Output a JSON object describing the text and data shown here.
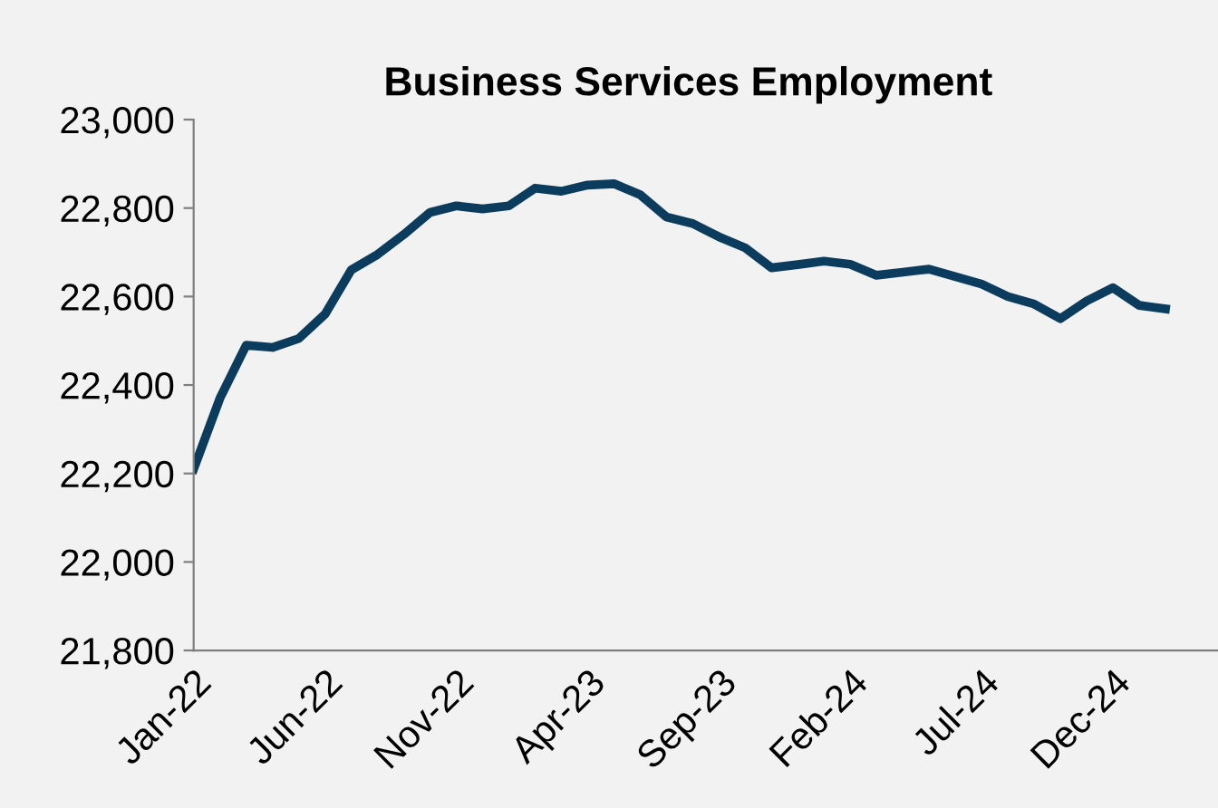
{
  "chart_data": {
    "type": "line",
    "title": "Business Services Employment",
    "categories": [
      "Jan-22",
      null,
      null,
      null,
      null,
      "Jun-22",
      null,
      null,
      null,
      null,
      "Nov-22",
      null,
      null,
      null,
      null,
      "Apr-23",
      null,
      null,
      null,
      null,
      "Sep-23",
      null,
      null,
      null,
      null,
      "Feb-24",
      null,
      null,
      null,
      null,
      "Jul-24",
      null,
      null,
      null,
      null,
      "Dec-24",
      null,
      null
    ],
    "series": [
      {
        "color": "#0b3c5d",
        "values": [
          22210,
          22370,
          22490,
          22485,
          22505,
          22560,
          22660,
          22695,
          22740,
          22790,
          22805,
          22798,
          22805,
          22845,
          22838,
          22852,
          22855,
          22830,
          22780,
          22765,
          22735,
          22710,
          22665,
          22672,
          22680,
          22673,
          22648,
          22655,
          22662,
          22645,
          22628,
          22600,
          22583,
          22550,
          22590,
          22620,
          22580,
          22572
        ]
      }
    ],
    "ylim": [
      21800,
      23000
    ],
    "yticks": [
      {
        "value": 21800,
        "label": "21,800"
      },
      {
        "value": 22000,
        "label": "22,000"
      },
      {
        "value": 22200,
        "label": "22,200"
      },
      {
        "value": 22400,
        "label": "22,400"
      },
      {
        "value": 22600,
        "label": "22,600"
      },
      {
        "value": 22800,
        "label": "22,800"
      },
      {
        "value": 23000,
        "label": "23,000"
      }
    ],
    "grid": false,
    "legend": false,
    "marker": "none",
    "line_style": "solid"
  }
}
